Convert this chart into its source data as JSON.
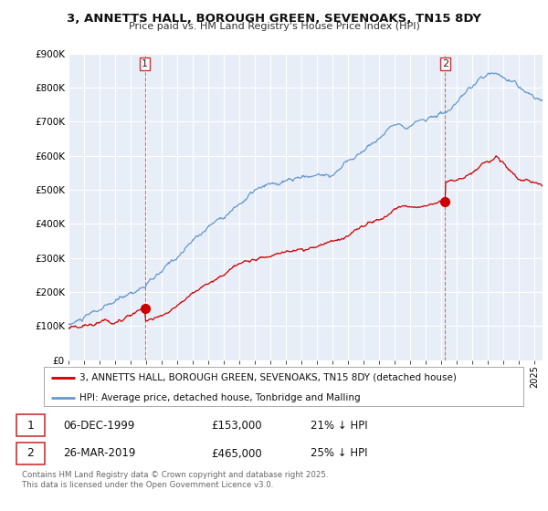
{
  "title": "3, ANNETTS HALL, BOROUGH GREEN, SEVENOAKS, TN15 8DY",
  "subtitle": "Price paid vs. HM Land Registry's House Price Index (HPI)",
  "legend_label_red": "3, ANNETTS HALL, BOROUGH GREEN, SEVENOAKS, TN15 8DY (detached house)",
  "legend_label_blue": "HPI: Average price, detached house, Tonbridge and Malling",
  "annotation1_date": "06-DEC-1999",
  "annotation1_price": "£153,000",
  "annotation1_hpi": "21% ↓ HPI",
  "annotation2_date": "26-MAR-2019",
  "annotation2_price": "£465,000",
  "annotation2_hpi": "25% ↓ HPI",
  "footer": "Contains HM Land Registry data © Crown copyright and database right 2025.\nThis data is licensed under the Open Government Licence v3.0.",
  "ylim": [
    0,
    900000
  ],
  "yticks": [
    0,
    100000,
    200000,
    300000,
    400000,
    500000,
    600000,
    700000,
    800000,
    900000
  ],
  "ytick_labels": [
    "£0",
    "£100K",
    "£200K",
    "£300K",
    "£400K",
    "£500K",
    "£600K",
    "£700K",
    "£800K",
    "£900K"
  ],
  "red_color": "#cc0000",
  "blue_color": "#6699cc",
  "bg_color": "#ffffff",
  "chart_bg_color": "#e8eef8",
  "grid_color": "#ffffff",
  "sale1_x": 1999.92,
  "sale1_y": 153000,
  "sale2_x": 2019.23,
  "sale2_y": 465000,
  "xmin": 1995,
  "xmax": 2025.5
}
